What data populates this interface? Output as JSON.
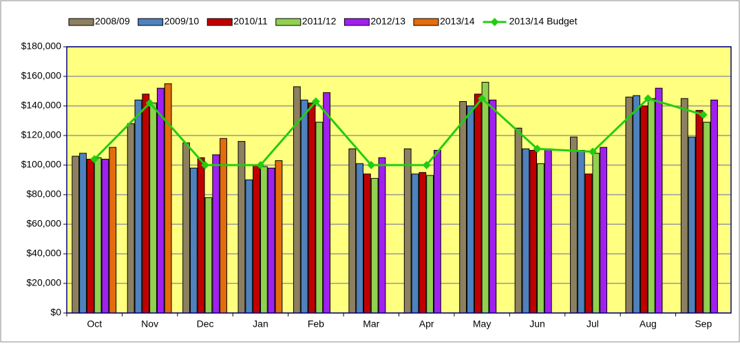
{
  "chart_data": {
    "type": "bar",
    "categories": [
      "Oct",
      "Nov",
      "Dec",
      "Jan",
      "Feb",
      "Mar",
      "Apr",
      "May",
      "Jun",
      "Jul",
      "Aug",
      "Sep"
    ],
    "series": [
      {
        "name": "2008/09",
        "color": "#8c8060",
        "values": [
          106000,
          128000,
          115000,
          116000,
          153000,
          111000,
          111000,
          143000,
          125000,
          119000,
          146000,
          145000
        ]
      },
      {
        "name": "2009/10",
        "color": "#4f81bd",
        "values": [
          108000,
          144000,
          98000,
          90000,
          144000,
          101000,
          94000,
          140000,
          111000,
          110000,
          147000,
          119000
        ]
      },
      {
        "name": "2010/11",
        "color": "#c00000",
        "values": [
          104000,
          148000,
          105000,
          100000,
          142000,
          94000,
          95000,
          148000,
          110000,
          94000,
          140000,
          137000
        ]
      },
      {
        "name": "2011/12",
        "color": "#92d050",
        "values": [
          105000,
          142000,
          78000,
          99000,
          129000,
          91000,
          93000,
          156000,
          101000,
          108000,
          145000,
          129000
        ]
      },
      {
        "name": "2012/13",
        "color": "#a020f0",
        "values": [
          104000,
          152000,
          107000,
          98000,
          149000,
          105000,
          110000,
          144000,
          111000,
          112000,
          152000,
          144000
        ]
      },
      {
        "name": "2013/14",
        "color": "#e46c0a",
        "values": [
          112000,
          155000,
          118000,
          103000,
          null,
          null,
          null,
          null,
          null,
          null,
          null,
          null
        ]
      },
      {
        "name": "2013/14 Budget",
        "color": "#22cc11",
        "type": "line",
        "values": [
          104000,
          142000,
          100000,
          100000,
          143000,
          100000,
          100000,
          145000,
          111000,
          109000,
          145000,
          134000
        ]
      }
    ],
    "ylim": [
      0,
      180000
    ],
    "yticks": [
      {
        "value": 0,
        "label": "$0"
      },
      {
        "value": 20000,
        "label": "$20,000"
      },
      {
        "value": 40000,
        "label": "$40,000"
      },
      {
        "value": 60000,
        "label": "$60,000"
      },
      {
        "value": 80000,
        "label": "$80,000"
      },
      {
        "value": 100000,
        "label": "$100,000"
      },
      {
        "value": 120000,
        "label": "$120,000"
      },
      {
        "value": 140000,
        "label": "$140,000"
      },
      {
        "value": 160000,
        "label": "$160,000"
      },
      {
        "value": 180000,
        "label": "$180,000"
      }
    ],
    "grid": true,
    "legend": "top",
    "plot_background": "#ffff80"
  }
}
